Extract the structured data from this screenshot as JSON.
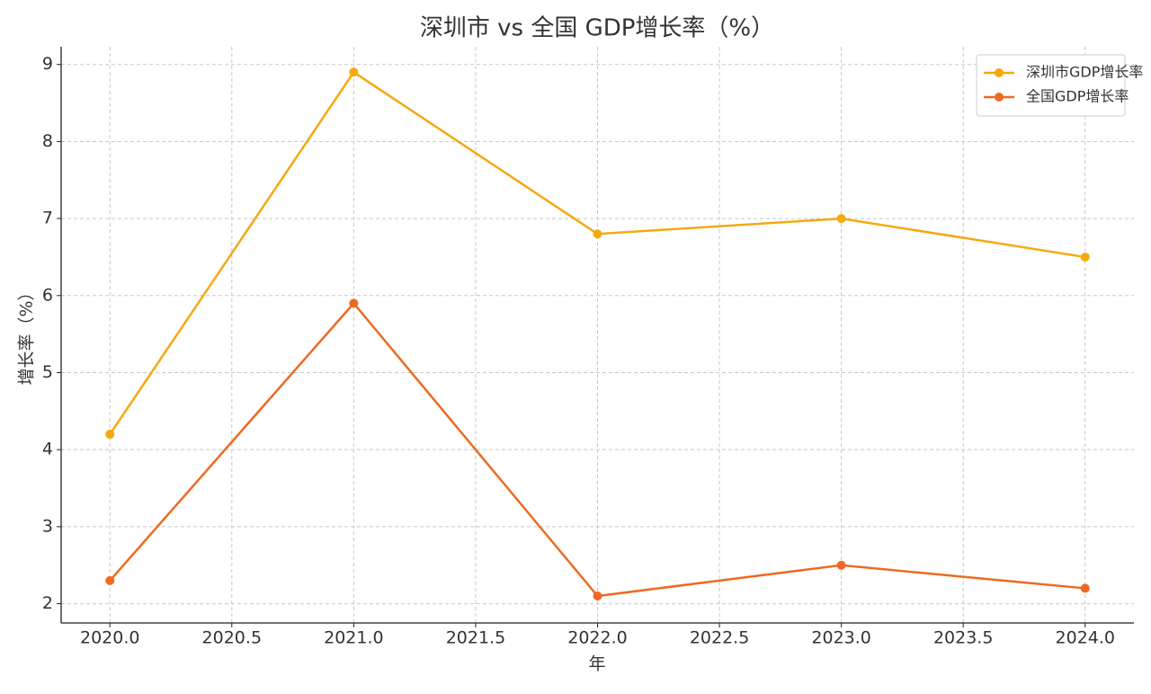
{
  "chart_data": {
    "type": "line",
    "title": "深圳市 vs 全国 GDP增长率（%）",
    "x_label": "年",
    "y_label": "增长率（%）",
    "x": [
      2020,
      2021,
      2022,
      2023,
      2024
    ],
    "series": [
      {
        "name": "深圳市GDP增长率",
        "color": "#f5a90f",
        "values": [
          4.2,
          8.9,
          6.8,
          7.0,
          6.5
        ]
      },
      {
        "name": "全国GDP增长率",
        "color": "#ee6a24",
        "values": [
          2.3,
          5.9,
          2.1,
          2.5,
          2.2
        ]
      }
    ],
    "xlim": [
      2019.8,
      2024.2
    ],
    "xticks": [
      {
        "value": 2020,
        "label": "2020.0"
      },
      {
        "value": 2020.5,
        "label": "2020.5"
      },
      {
        "value": 2021,
        "label": "2021.0"
      },
      {
        "value": 2021.5,
        "label": "2021.5"
      },
      {
        "value": 2022,
        "label": "2022.0"
      },
      {
        "value": 2022.5,
        "label": "2022.5"
      },
      {
        "value": 2023,
        "label": "2023.0"
      },
      {
        "value": 2023.5,
        "label": "2023.5"
      },
      {
        "value": 2024,
        "label": "2024.0"
      }
    ],
    "ylim": [
      1.75,
      9.23
    ],
    "yticks": [
      2,
      3,
      4,
      5,
      6,
      7,
      8,
      9
    ],
    "grid": true,
    "legend": "upper-right"
  }
}
